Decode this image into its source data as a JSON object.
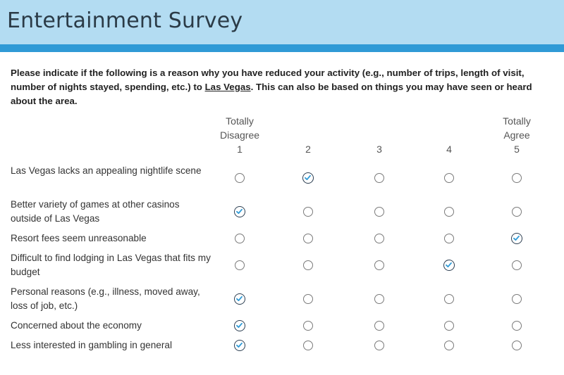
{
  "header": {
    "title": "Entertainment Survey"
  },
  "question": {
    "text_before": "Please indicate if the following is a reason why you have reduced your activity (e.g., number of trips, length of visit, number of nights stayed, spending, etc.) to ",
    "underlined": "Las Vegas",
    "text_after": ".  This can also be based on things you may have seen or heard about the area."
  },
  "scale": [
    {
      "top": "Totally",
      "mid": "Disagree",
      "num": "1"
    },
    {
      "top": "",
      "mid": "",
      "num": "2"
    },
    {
      "top": "",
      "mid": "",
      "num": "3"
    },
    {
      "top": "",
      "mid": "",
      "num": "4"
    },
    {
      "top": "Totally",
      "mid": "Agree",
      "num": "5"
    }
  ],
  "rows": [
    {
      "label": "Las Vegas lacks an appealing nightlife scene",
      "selected": 2
    },
    {
      "label": "Better variety of games at other casinos outside of Las Vegas",
      "selected": 1
    },
    {
      "label": "Resort fees seem unreasonable",
      "selected": 5
    },
    {
      "label": "Difficult to find lodging in Las Vegas that fits my budget",
      "selected": 4
    },
    {
      "label": "Personal reasons (e.g., illness, moved away, loss of job, etc.)",
      "selected": 1
    },
    {
      "label": "Concerned about the economy",
      "selected": 1
    },
    {
      "label": "Less interested in gambling in general",
      "selected": 1
    }
  ]
}
